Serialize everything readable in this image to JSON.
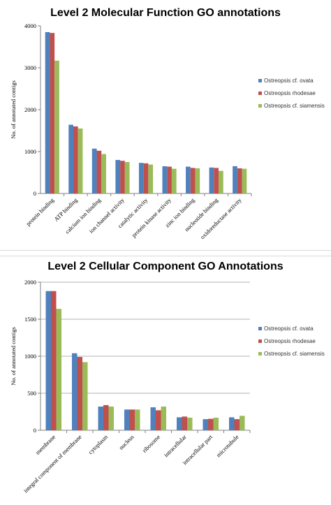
{
  "colors": {
    "Ostreopsis cf. ovata": "#4f81bd",
    "Ostreopsis rhodesae": "#c0504d",
    "Ostreopsis cf. siamensis": "#9bbb59",
    "gridline": "#b3b3b3",
    "axis": "#808080"
  },
  "chart_data": [
    {
      "type": "bar",
      "title": "Level 2 Molecular Function GO annotations",
      "xlabel": "",
      "ylabel": "No. of annotated contigs",
      "ylim": [
        0,
        4000
      ],
      "yticks": [
        0,
        1000,
        2000,
        3000,
        4000
      ],
      "grid": false,
      "legend": "right",
      "categories": [
        "protein binding",
        "ATP binding",
        "calcium ion binding",
        "ion channel activity",
        "catalytic activity",
        "protein kinase activity",
        "zinc ion binding",
        "nucleotide binding",
        "oxidoreductase activity"
      ],
      "series": [
        {
          "name": "Ostreopsis cf. ovata",
          "values": [
            3850,
            1640,
            1070,
            800,
            730,
            650,
            640,
            620,
            650
          ]
        },
        {
          "name": "Ostreopsis rhodesae",
          "values": [
            3830,
            1600,
            1020,
            780,
            720,
            640,
            610,
            610,
            600
          ]
        },
        {
          "name": "Ostreopsis cf. siamensis",
          "values": [
            3170,
            1550,
            940,
            750,
            690,
            590,
            600,
            540,
            590
          ]
        }
      ]
    },
    {
      "type": "bar",
      "title": "Level 2 Cellular Component GO Annotations",
      "xlabel": "",
      "ylabel": "No. of annotated contigs",
      "ylim": [
        0,
        2000
      ],
      "yticks": [
        0,
        500,
        1000,
        1500,
        2000
      ],
      "grid": true,
      "legend": "right",
      "categories": [
        "membrane",
        "integral component of membrane",
        "cytoplasm",
        "nucleus",
        "ribosome",
        "intracellular",
        "intracellular part",
        "microtubule"
      ],
      "series": [
        {
          "name": "Ostreopsis cf. ovata",
          "values": [
            1880,
            1040,
            320,
            280,
            310,
            175,
            150,
            175
          ]
        },
        {
          "name": "Ostreopsis rhodesae",
          "values": [
            1880,
            990,
            340,
            280,
            270,
            185,
            155,
            150
          ]
        },
        {
          "name": "Ostreopsis cf. siamensis",
          "values": [
            1640,
            920,
            320,
            280,
            320,
            170,
            170,
            195
          ]
        }
      ]
    }
  ]
}
